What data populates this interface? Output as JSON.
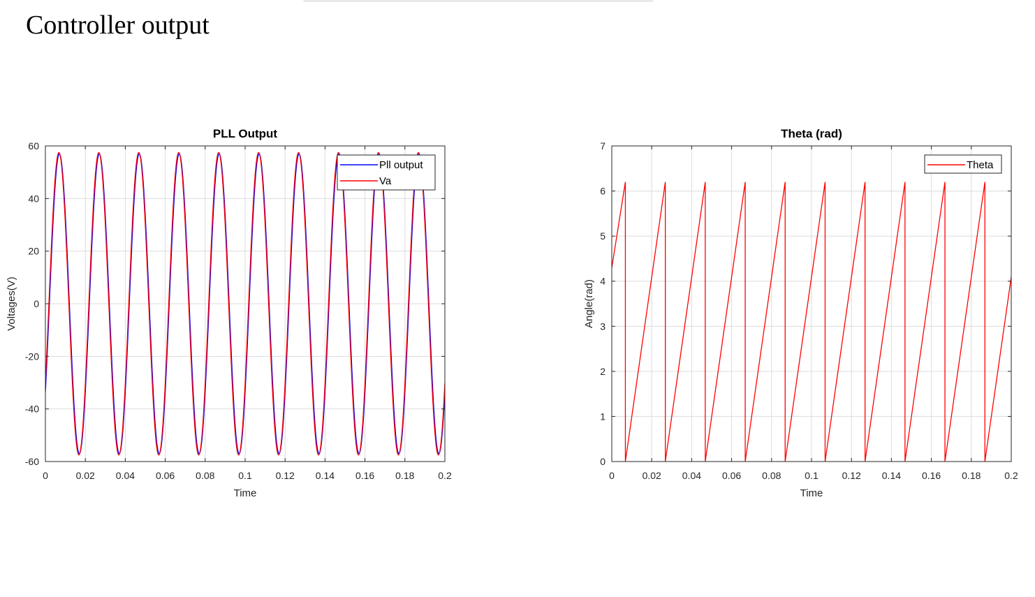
{
  "page": {
    "heading": "Controller output"
  },
  "colors": {
    "axis": "#262626",
    "grid": "#dcdcdc",
    "blue": "#0000ff",
    "red": "#ff0000"
  },
  "chart_data": [
    {
      "type": "line",
      "title": "PLL Output",
      "xlabel": "Time",
      "ylabel": "Voltages(V)",
      "xlim": [
        0,
        0.2
      ],
      "ylim": [
        -60,
        60
      ],
      "xticks": [
        0,
        0.02,
        0.04,
        0.06,
        0.08,
        0.1,
        0.12,
        0.14,
        0.16,
        0.18,
        0.2
      ],
      "yticks": [
        -60,
        -40,
        -20,
        0,
        20,
        40,
        60
      ],
      "grid": true,
      "legend_position": "top-right",
      "series": [
        {
          "name": "Pll output",
          "color": "#0000ff",
          "function": "sine",
          "amplitude": 57,
          "frequency_hz": 50,
          "phase_rad": -0.63,
          "x_range": [
            0,
            0.2
          ]
        },
        {
          "name": "Va",
          "color": "#ff0000",
          "function": "sine",
          "amplitude": 57.5,
          "frequency_hz": 50,
          "phase_rad": -0.55,
          "x_range": [
            0,
            0.2
          ]
        }
      ]
    },
    {
      "type": "line",
      "title": "Theta (rad)",
      "xlabel": "Time",
      "ylabel": "Angle(rad)",
      "xlim": [
        0,
        0.2
      ],
      "ylim": [
        0,
        7
      ],
      "xticks": [
        0,
        0.02,
        0.04,
        0.06,
        0.08,
        0.1,
        0.12,
        0.14,
        0.16,
        0.18,
        0.2
      ],
      "yticks": [
        0,
        1,
        2,
        3,
        4,
        5,
        6,
        7
      ],
      "grid": true,
      "legend_position": "top-right",
      "series": [
        {
          "name": "Theta",
          "color": "#ff0000",
          "function": "sawtooth",
          "start_value": 4.3,
          "peak_value": 6.2,
          "min_value": 0,
          "first_reset_time": 0.0068,
          "period": 0.02,
          "x_range": [
            0,
            0.2
          ]
        }
      ]
    }
  ]
}
